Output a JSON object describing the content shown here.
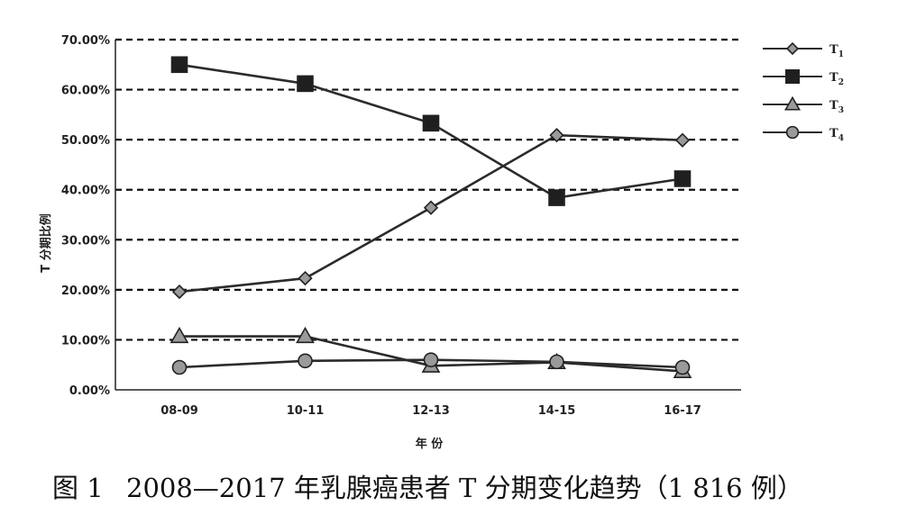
{
  "chart_data": {
    "type": "line",
    "title": "",
    "caption_number": "图 1",
    "caption": "2008—2017 年乳腺癌患者 T 分期变化趋势（1 816 例）",
    "xlabel": "年 份",
    "ylabel": "T 分期比例",
    "categories": [
      "08-09",
      "10-11",
      "12-13",
      "14-15",
      "16-17"
    ],
    "yticks": [
      "0.00%",
      "10.00%",
      "20.00%",
      "30.00%",
      "40.00%",
      "50.00%",
      "60.00%",
      "70.00%"
    ],
    "ylim": [
      0,
      70
    ],
    "grid": "dashed-horizontal",
    "legend_position": "top-right",
    "series": [
      {
        "name": "T",
        "subscript": "1",
        "marker": "diamond",
        "values": [
          19.6,
          22.3,
          36.4,
          50.9,
          49.9
        ]
      },
      {
        "name": "T",
        "subscript": "2",
        "marker": "square",
        "values": [
          65.0,
          61.2,
          53.3,
          38.4,
          42.2
        ]
      },
      {
        "name": "T",
        "subscript": "3",
        "marker": "triangle",
        "values": [
          10.7,
          10.7,
          4.8,
          5.5,
          3.7
        ]
      },
      {
        "name": "T",
        "subscript": "4",
        "marker": "circle",
        "values": [
          4.5,
          5.8,
          6.0,
          5.6,
          4.5
        ]
      }
    ],
    "colors": {
      "line": "#2b2b2b",
      "marker_gray": "#9a9a9a",
      "marker_dark": "#1f1f1f",
      "grid": "#111111"
    }
  }
}
